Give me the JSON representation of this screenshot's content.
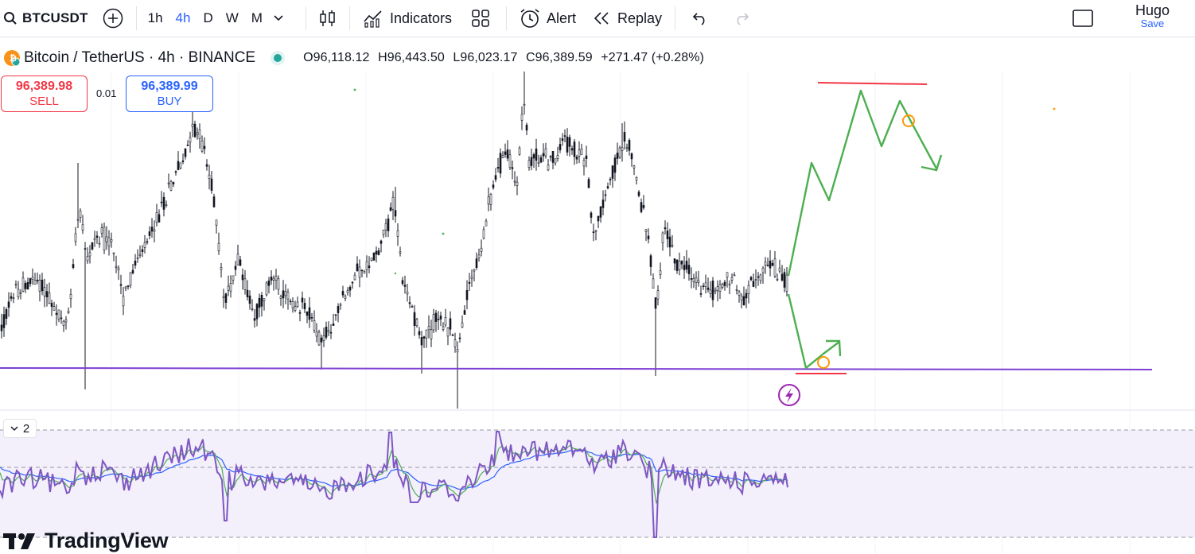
{
  "toolbar": {
    "symbol": "BTCUSDT",
    "timeframes": [
      "1h",
      "4h",
      "D",
      "W",
      "M"
    ],
    "active_timeframe": "4h",
    "indicators_label": "Indicators",
    "alert_label": "Alert",
    "replay_label": "Replay",
    "user_name": "Hugo",
    "save_label": "Save"
  },
  "legend": {
    "title": "Bitcoin / TetherUS · 4h · BINANCE",
    "open": "O96,118.12",
    "high": "H96,443.50",
    "low": "L96,023.17",
    "close": "C96,389.59",
    "change": "+271.47 (+0.28%)"
  },
  "trade": {
    "sell_price": "96,389.98",
    "sell_label": "SELL",
    "spread": "0.01",
    "buy_price": "96,389.99",
    "buy_label": "BUY"
  },
  "rsi": {
    "pane_label": "2"
  },
  "brand": {
    "logo_text": "TradingView"
  },
  "colors": {
    "accent": "#2962ff",
    "sell": "#f23645",
    "support_line": "#7e3fd4",
    "projection": "#4caf50",
    "target_line": "#f23645",
    "marker": "#ff9800",
    "rsi_line": "#7e57c2",
    "rsi_ma": "#2962ff",
    "rsi_fast": "#4caf50"
  },
  "icons": [
    "search-icon",
    "add-symbol-icon",
    "bar-style-icon",
    "indicators-icon",
    "templates-icon",
    "alert-icon",
    "replay-icon",
    "undo-icon",
    "redo-icon",
    "fullscreen-icon",
    "collapse-icon",
    "lightning-icon",
    "logo-icon"
  ]
}
